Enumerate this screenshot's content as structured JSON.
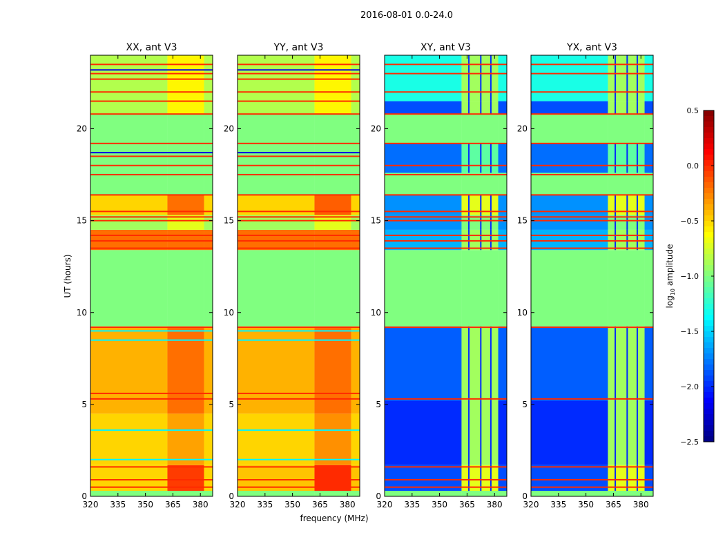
{
  "chart_data": {
    "type": "heatmap",
    "title": "2016-08-01 0.0-24.0",
    "xlabel": "frequency (MHz)",
    "ylabel": "UT (hours)",
    "xlim": [
      320,
      386.7
    ],
    "ylim": [
      0,
      24
    ],
    "xticks": [
      "320",
      "335",
      "350",
      "365",
      "380"
    ],
    "xtick_values": [
      320,
      335,
      350,
      365,
      380
    ],
    "yticks": [
      "0",
      "5",
      "10",
      "15",
      "20"
    ],
    "ytick_values": [
      0,
      5,
      10,
      15,
      20
    ],
    "rfi_band_mhz": [
      362,
      382
    ],
    "colorbar": {
      "label": "log10 amplitude",
      "label_main": "log",
      "label_sub": "10",
      "label_rest": " amplitude",
      "range": [
        -2.5,
        0.5
      ],
      "colormap": "jet",
      "ticks": [
        "0.5",
        "0.0",
        "−0.5",
        "−1.0",
        "−1.5",
        "−2.0",
        "−2.5"
      ],
      "tick_values": [
        0.5,
        0.0,
        -0.5,
        -1.0,
        -1.5,
        -2.0,
        -2.5
      ]
    },
    "panels": [
      {
        "title": "XX, ant V3",
        "bands": [
          [
            0,
            0.3,
            -1,
            -1
          ],
          [
            0.3,
            1.7,
            -0.5,
            -0.05
          ],
          [
            1.7,
            4.5,
            -0.5,
            -0.35
          ],
          [
            4.5,
            9.25,
            -0.4,
            -0.2
          ],
          [
            9.25,
            13.4,
            -1,
            -1
          ],
          [
            13.4,
            14.5,
            -0.2,
            -0.2
          ],
          [
            14.5,
            15.3,
            -0.9,
            -0.7
          ],
          [
            15.3,
            16.4,
            -0.5,
            -0.2
          ],
          [
            16.4,
            20.8,
            -1,
            -1
          ],
          [
            20.8,
            24,
            -0.85,
            -0.6
          ]
        ],
        "lines": [
          [
            0.5,
            0
          ],
          [
            0.9,
            0
          ],
          [
            1.6,
            0
          ],
          [
            2.0,
            -1.4
          ],
          [
            3.6,
            -1.4
          ],
          [
            5.3,
            0
          ],
          [
            5.6,
            0
          ],
          [
            8.5,
            -1.4
          ],
          [
            9.0,
            -1.4
          ],
          [
            9.2,
            0
          ],
          [
            13.5,
            0
          ],
          [
            13.9,
            0
          ],
          [
            14.2,
            0
          ],
          [
            15.0,
            0
          ],
          [
            15.2,
            0
          ],
          [
            15.5,
            0
          ],
          [
            16.4,
            0
          ],
          [
            17.5,
            0
          ],
          [
            18.0,
            0
          ],
          [
            18.5,
            0
          ],
          [
            18.7,
            -2.2
          ],
          [
            19.2,
            0
          ],
          [
            20.8,
            0
          ],
          [
            21.5,
            0
          ],
          [
            22.0,
            0
          ],
          [
            22.7,
            0
          ],
          [
            23.0,
            0
          ],
          [
            23.2,
            -2.2
          ],
          [
            23.5,
            0
          ]
        ],
        "rfi_columns": []
      },
      {
        "title": "YY, ant V3",
        "bands": [
          [
            0,
            0.3,
            -1,
            -1
          ],
          [
            0.3,
            1.7,
            -0.45,
            0.0
          ],
          [
            1.7,
            4.5,
            -0.5,
            -0.3
          ],
          [
            4.5,
            9.25,
            -0.4,
            -0.2
          ],
          [
            9.25,
            13.4,
            -1,
            -1
          ],
          [
            13.4,
            14.5,
            -0.2,
            -0.2
          ],
          [
            14.5,
            15.3,
            -0.9,
            -0.7
          ],
          [
            15.3,
            16.4,
            -0.5,
            -0.15
          ],
          [
            16.4,
            20.8,
            -1,
            -1
          ],
          [
            20.8,
            24,
            -0.85,
            -0.6
          ]
        ],
        "lines": [
          [
            0.5,
            0
          ],
          [
            0.9,
            0
          ],
          [
            1.6,
            0
          ],
          [
            2.0,
            -1.4
          ],
          [
            3.6,
            -1.4
          ],
          [
            5.3,
            0
          ],
          [
            5.6,
            0
          ],
          [
            8.5,
            -1.4
          ],
          [
            9.0,
            -1.4
          ],
          [
            9.2,
            0
          ],
          [
            13.5,
            0
          ],
          [
            13.9,
            0
          ],
          [
            14.2,
            0
          ],
          [
            15.0,
            0
          ],
          [
            15.2,
            0
          ],
          [
            15.5,
            0
          ],
          [
            16.4,
            0
          ],
          [
            17.5,
            0
          ],
          [
            18.0,
            0
          ],
          [
            18.5,
            0
          ],
          [
            18.7,
            -2.2
          ],
          [
            19.2,
            0
          ],
          [
            20.8,
            0
          ],
          [
            21.5,
            0
          ],
          [
            22.0,
            0
          ],
          [
            22.7,
            0
          ],
          [
            23.0,
            0
          ],
          [
            23.2,
            -2.2
          ],
          [
            23.5,
            0
          ]
        ],
        "rfi_columns": []
      },
      {
        "title": "XY, ant V3",
        "bands": [
          [
            0,
            0.3,
            -1,
            -1
          ],
          [
            0.3,
            1.7,
            -1.9,
            -0.7
          ],
          [
            1.7,
            5.2,
            -2.0,
            -0.9
          ],
          [
            5.2,
            9.25,
            -1.85,
            -0.9
          ],
          [
            9.25,
            13.4,
            -1,
            -1
          ],
          [
            13.4,
            14.5,
            -1.6,
            -0.9
          ],
          [
            14.5,
            15.3,
            -1.7,
            -1.0
          ],
          [
            15.3,
            16.4,
            -1.7,
            -0.7
          ],
          [
            16.4,
            17.6,
            -1,
            -1
          ],
          [
            17.6,
            19.2,
            -1.8,
            -1.1
          ],
          [
            19.2,
            20.8,
            -1,
            -1
          ],
          [
            20.8,
            21.5,
            -1.9,
            -0.9
          ],
          [
            21.5,
            24,
            -1.3,
            -0.9
          ]
        ],
        "lines": [
          [
            0.5,
            0
          ],
          [
            0.9,
            0
          ],
          [
            1.6,
            0
          ],
          [
            5.3,
            0
          ],
          [
            9.2,
            0
          ],
          [
            13.5,
            0
          ],
          [
            13.9,
            0
          ],
          [
            14.2,
            0
          ],
          [
            15.0,
            0
          ],
          [
            15.2,
            0
          ],
          [
            15.5,
            0
          ],
          [
            16.4,
            0
          ],
          [
            17.5,
            0
          ],
          [
            18.0,
            0
          ],
          [
            19.2,
            0
          ],
          [
            20.8,
            0
          ],
          [
            22.0,
            0
          ],
          [
            23.0,
            0
          ],
          [
            23.5,
            0
          ]
        ],
        "rfi_columns": [
          366,
          372.5,
          378
        ]
      },
      {
        "title": "YX, ant V3",
        "bands": [
          [
            0,
            0.3,
            -1,
            -1
          ],
          [
            0.3,
            1.7,
            -1.9,
            -0.7
          ],
          [
            1.7,
            5.2,
            -2.0,
            -0.9
          ],
          [
            5.2,
            9.25,
            -1.85,
            -0.9
          ],
          [
            9.25,
            13.4,
            -1,
            -1
          ],
          [
            13.4,
            14.5,
            -1.6,
            -0.9
          ],
          [
            14.5,
            15.3,
            -1.7,
            -1.0
          ],
          [
            15.3,
            16.4,
            -1.7,
            -0.7
          ],
          [
            16.4,
            17.6,
            -1,
            -1
          ],
          [
            17.6,
            19.2,
            -1.8,
            -1.1
          ],
          [
            19.2,
            20.8,
            -1,
            -1
          ],
          [
            20.8,
            21.5,
            -1.9,
            -0.9
          ],
          [
            21.5,
            24,
            -1.3,
            -0.9
          ]
        ],
        "lines": [
          [
            0.5,
            0
          ],
          [
            0.9,
            0
          ],
          [
            1.6,
            0
          ],
          [
            5.3,
            0
          ],
          [
            9.2,
            0
          ],
          [
            13.5,
            0
          ],
          [
            13.9,
            0
          ],
          [
            14.2,
            0
          ],
          [
            15.0,
            0
          ],
          [
            15.2,
            0
          ],
          [
            15.5,
            0
          ],
          [
            16.4,
            0
          ],
          [
            17.5,
            0
          ],
          [
            18.0,
            0
          ],
          [
            19.2,
            0
          ],
          [
            20.8,
            0
          ],
          [
            22.0,
            0
          ],
          [
            23.0,
            0
          ],
          [
            23.5,
            0
          ]
        ],
        "rfi_columns": [
          366,
          372.5,
          378
        ]
      }
    ]
  }
}
